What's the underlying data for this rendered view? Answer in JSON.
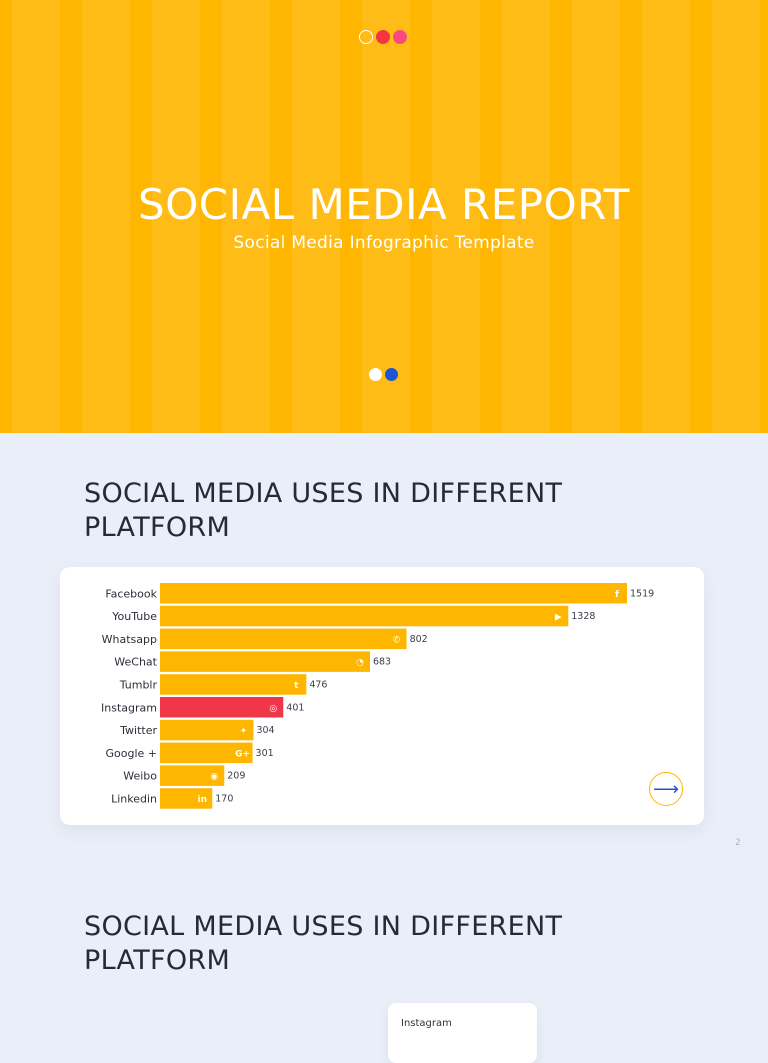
{
  "hero": {
    "title": "SOCIAL MEDIA REPORT",
    "subtitle": "Social Media Infographic Template",
    "top_dot_colors": [
      "transparent",
      "#f4343f",
      "#f94a7e"
    ],
    "pager_colors": [
      "#ffffff",
      "#1c55d6"
    ],
    "background": "#ffb601"
  },
  "section1": {
    "title": "SOCIAL MEDIA USES IN DIFFERENT PLATFORM"
  },
  "section2": {
    "title": "SOCIAL MEDIA USES IN DIFFERENT PLATFORM"
  },
  "page_number": "2",
  "card2": {
    "label": "Instagram"
  },
  "next_button": {
    "icon": "arrow-right-icon",
    "glyph": "⟶"
  },
  "chart_data": {
    "type": "bar",
    "orientation": "horizontal",
    "categories": [
      "Facebook",
      "YouTube",
      "Whatsapp",
      "WeChat",
      "Tumblr",
      "Instagram",
      "Twitter",
      "Google +",
      "Weibo",
      "Linkedin"
    ],
    "values": [
      1519,
      1328,
      802,
      683,
      476,
      401,
      304,
      301,
      209,
      170
    ],
    "icons": [
      "facebook-icon",
      "youtube-icon",
      "whatsapp-icon",
      "wechat-icon",
      "tumblr-icon",
      "instagram-icon",
      "twitter-icon",
      "google-plus-icon",
      "weibo-icon",
      "linkedin-icon"
    ],
    "icon_glyphs": [
      "f",
      "▶",
      "✆",
      "◔",
      "t",
      "◎",
      "✦",
      "G+",
      "◉",
      "in"
    ],
    "colors": [
      "#ffb601",
      "#ffb601",
      "#ffb601",
      "#ffb601",
      "#ffb601",
      "#f0374a",
      "#ffb601",
      "#ffb601",
      "#ffb601",
      "#ffb601"
    ],
    "highlight": "Instagram",
    "xlim": [
      0,
      1519
    ],
    "grid": false,
    "data_labels": true
  }
}
